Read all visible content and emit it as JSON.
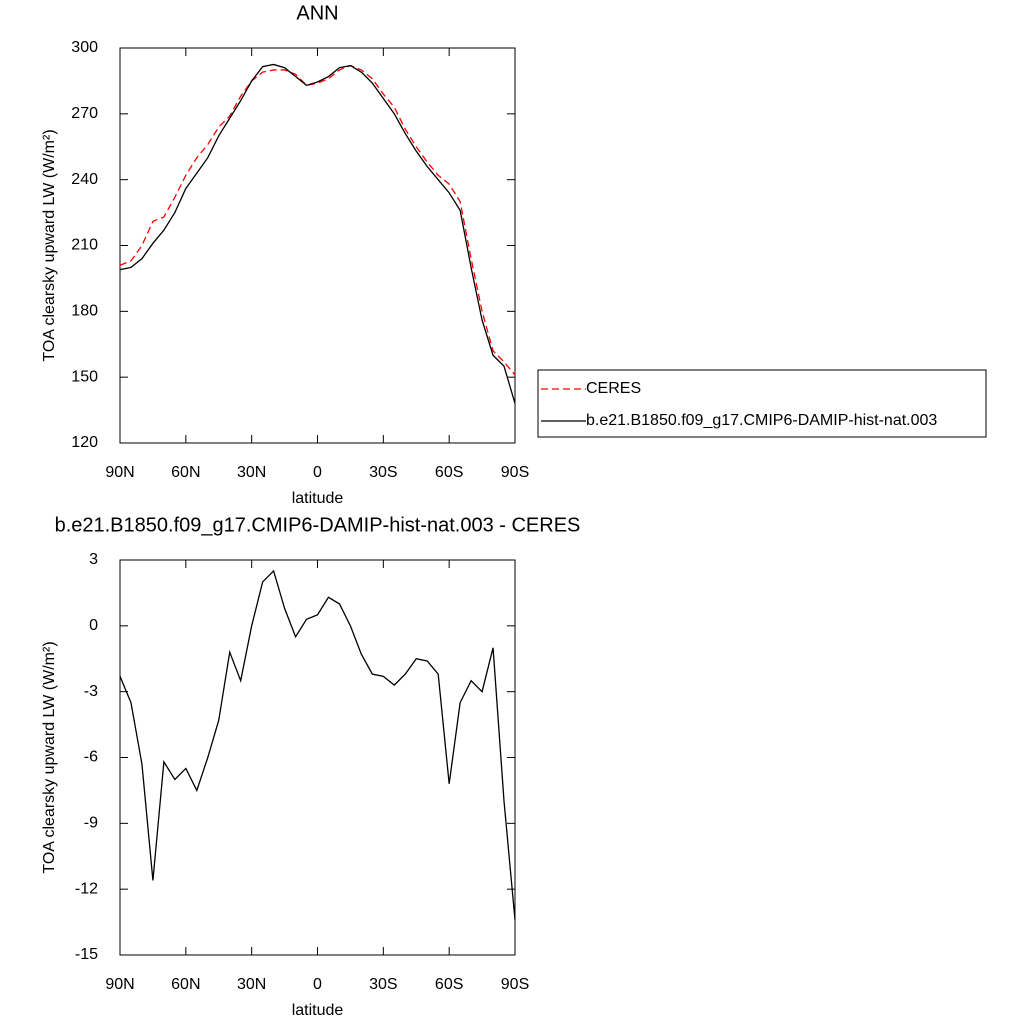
{
  "chart_data": [
    {
      "type": "line",
      "title": "ANN",
      "x_label": "latitude",
      "y_label": "TOA clearsky upward LW (W/m²)",
      "x": [
        90,
        85,
        80,
        75,
        70,
        65,
        60,
        55,
        50,
        45,
        40,
        35,
        30,
        25,
        20,
        15,
        10,
        5,
        0,
        -5,
        -10,
        -15,
        -20,
        -25,
        -30,
        -35,
        -40,
        -45,
        -50,
        -55,
        -60,
        -65,
        -70,
        -75,
        -80,
        -85,
        -90
      ],
      "series": [
        {
          "name": "CERES",
          "color": "#ff0000",
          "style": "dashed",
          "values": [
            201,
            203,
            210,
            221,
            223,
            232,
            242,
            250,
            256,
            264,
            269,
            278,
            285,
            289,
            290,
            290,
            288,
            283,
            284,
            286,
            290,
            292,
            290,
            286,
            279,
            273,
            263,
            255,
            248,
            242,
            238,
            230,
            204,
            180,
            162,
            157,
            151
          ]
        },
        {
          "name": "b.e21.B1850.f09_g17.CMIP6-DAMIP-hist-nat.003",
          "color": "#000000",
          "style": "solid",
          "values": [
            199,
            200,
            204,
            211,
            217,
            225,
            236,
            243,
            250,
            260,
            268,
            276,
            285,
            291.5,
            292.5,
            291,
            287,
            283,
            284.5,
            287,
            291,
            292,
            289,
            284,
            277,
            270,
            261,
            253,
            246,
            240,
            234,
            226,
            200,
            176,
            160,
            155,
            138
          ]
        }
      ],
      "xlim": [
        90,
        -90
      ],
      "xticks": [
        {
          "value": 90,
          "label": "90N"
        },
        {
          "value": 60,
          "label": "60N"
        },
        {
          "value": 30,
          "label": "30N"
        },
        0,
        {
          "value": -30,
          "label": "30S"
        },
        {
          "value": -60,
          "label": "60S"
        },
        {
          "value": -90,
          "label": "90S"
        }
      ],
      "ylim": [
        120,
        300
      ],
      "yticks": [
        120,
        150,
        180,
        210,
        240,
        270,
        300
      ],
      "legend": "right"
    },
    {
      "type": "line",
      "title": "b.e21.B1850.f09_g17.CMIP6-DAMIP-hist-nat.003 - CERES",
      "x_label": "latitude",
      "y_label": "TOA clearsky upward LW (W/m²)",
      "x": [
        90,
        85,
        80,
        75,
        70,
        65,
        60,
        55,
        50,
        45,
        40,
        35,
        30,
        25,
        20,
        15,
        10,
        5,
        0,
        -5,
        -10,
        -15,
        -20,
        -25,
        -30,
        -35,
        -40,
        -45,
        -50,
        -55,
        -60,
        -65,
        -70,
        -75,
        -80,
        -85,
        -90
      ],
      "values": [
        -2.3,
        -3.5,
        -6.3,
        -11.6,
        -6.2,
        -7,
        -6.5,
        -7.5,
        -6,
        -4.3,
        -1.2,
        -2.5,
        0,
        2,
        2.5,
        0.8,
        -0.5,
        0.3,
        0.5,
        1.3,
        1,
        0,
        -1.3,
        -2.2,
        -2.3,
        -2.7,
        -2.2,
        -1.5,
        -1.6,
        -2.2,
        -7.2,
        -3.5,
        -2.5,
        -3,
        -1,
        -8,
        -13.4
      ],
      "color": "#000000",
      "xlim": [
        90,
        -90
      ],
      "xticks": [
        {
          "value": 90,
          "label": "90N"
        },
        {
          "value": 60,
          "label": "60N"
        },
        {
          "value": 30,
          "label": "30N"
        },
        0,
        {
          "value": -30,
          "label": "30S"
        },
        {
          "value": -60,
          "label": "60S"
        },
        {
          "value": -90,
          "label": "90S"
        }
      ],
      "ylim": [
        -15,
        3
      ],
      "yticks": [
        -15,
        -12,
        -9,
        -6,
        -3,
        0,
        3
      ]
    }
  ]
}
